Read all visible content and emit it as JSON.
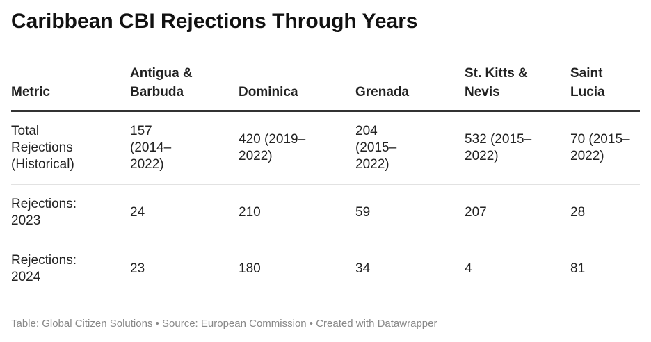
{
  "title": "Caribbean CBI Rejections Through Years",
  "table": {
    "header": [
      "Metric",
      "Antigua & Barbuda",
      "Dominica",
      "Grenada",
      "St. Kitts & Nevis",
      "Saint Lucia"
    ],
    "rows": [
      [
        "Total Rejections (Historical)",
        "157 (2014–2022)",
        "420 (2019–2022)",
        "204 (2015–2022)",
        "532 (2015–2022)",
        "70 (2015–2022)"
      ],
      [
        "Rejections: 2023",
        "24",
        "210",
        "59",
        "207",
        "28"
      ],
      [
        "Rejections: 2024",
        "23",
        "180",
        "34",
        "4",
        "81"
      ]
    ]
  },
  "footer": "Table: Global Citizen Solutions • Source: European Commission • Created with Datawrapper"
}
